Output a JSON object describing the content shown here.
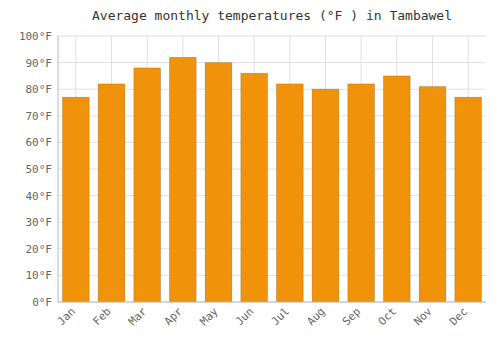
{
  "chart_data": {
    "type": "bar",
    "title": "Average monthly temperatures (°F ) in Tambawel",
    "categories": [
      "Jan",
      "Feb",
      "Mar",
      "Apr",
      "May",
      "Jun",
      "Jul",
      "Aug",
      "Sep",
      "Oct",
      "Nov",
      "Dec"
    ],
    "values": [
      77,
      82,
      88,
      92,
      90,
      86,
      82,
      80,
      82,
      85,
      81,
      77
    ],
    "color": "#F0920A",
    "ylim": [
      0,
      100
    ],
    "yticks": [
      {
        "value": 0,
        "label": "0°F"
      },
      {
        "value": 10,
        "label": "10°F"
      },
      {
        "value": 20,
        "label": "20°F"
      },
      {
        "value": 30,
        "label": "30°F"
      },
      {
        "value": 40,
        "label": "40°F"
      },
      {
        "value": 50,
        "label": "50°F"
      },
      {
        "value": 60,
        "label": "60°F"
      },
      {
        "value": 70,
        "label": "70°F"
      },
      {
        "value": 80,
        "label": "80°F"
      },
      {
        "value": 90,
        "label": "90°F"
      },
      {
        "value": 100,
        "label": "100°F"
      }
    ],
    "grid": true
  }
}
